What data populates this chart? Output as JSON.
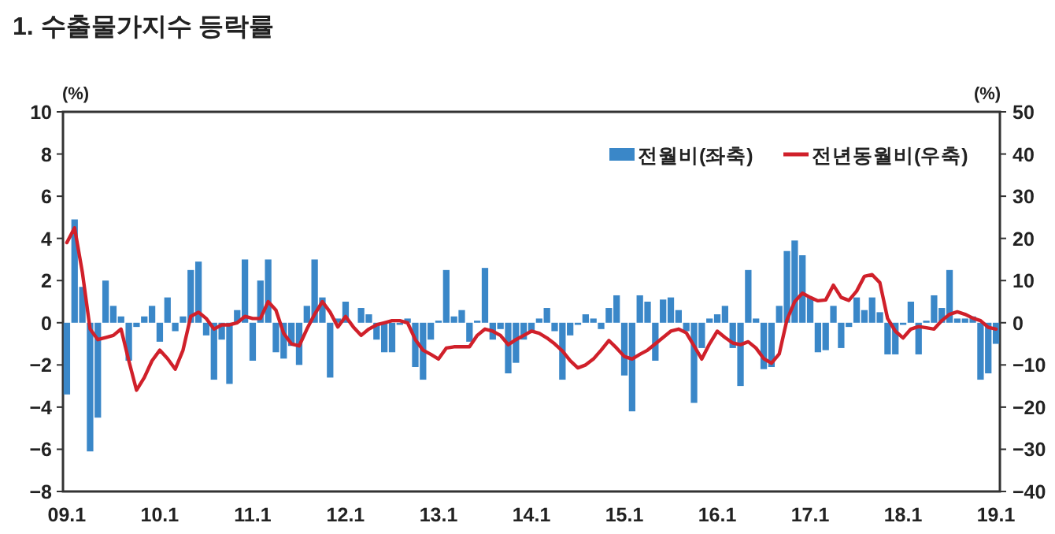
{
  "chart_data": {
    "type": "bar",
    "title": "1. 수출물가지수 등락률",
    "ylabel": "(%)",
    "y2label": "(%)",
    "categories": [
      "09.1",
      null,
      null,
      null,
      null,
      null,
      null,
      null,
      null,
      null,
      null,
      null,
      "10.1",
      null,
      null,
      null,
      null,
      null,
      null,
      null,
      null,
      null,
      null,
      null,
      "11.1",
      null,
      null,
      null,
      null,
      null,
      null,
      null,
      null,
      null,
      null,
      null,
      "12.1",
      null,
      null,
      null,
      null,
      null,
      null,
      null,
      null,
      null,
      null,
      null,
      "13.1",
      null,
      null,
      null,
      null,
      null,
      null,
      null,
      null,
      null,
      null,
      null,
      "14.1",
      null,
      null,
      null,
      null,
      null,
      null,
      null,
      null,
      null,
      null,
      null,
      "15.1",
      null,
      null,
      null,
      null,
      null,
      null,
      null,
      null,
      null,
      null,
      null,
      "16.1",
      null,
      null,
      null,
      null,
      null,
      null,
      null,
      null,
      null,
      null,
      null,
      "17.1",
      null,
      null,
      null,
      null,
      null,
      null,
      null,
      null,
      null,
      null,
      null,
      "18.1",
      null,
      null,
      null,
      null,
      null,
      null,
      null,
      null,
      null,
      null,
      null,
      "19.1"
    ],
    "series": [
      {
        "name": "전월비(좌축)",
        "color": "#3a87c8",
        "values": [
          -3.4,
          4.9,
          1.7,
          -6.1,
          -4.5,
          2.0,
          0.8,
          0.3,
          -1.8,
          -0.2,
          0.3,
          0.8,
          -0.9,
          1.2,
          -0.4,
          0.3,
          2.5,
          2.9,
          -0.6,
          -2.7,
          -0.8,
          -2.9,
          0.6,
          3.0,
          -1.8,
          2.0,
          3.0,
          -1.4,
          -1.7,
          -1.1,
          -2.0,
          0.8,
          3.0,
          1.2,
          -2.6,
          0.2,
          1.0,
          null,
          0.7,
          0.4,
          -0.8,
          -1.4,
          -1.4,
          -0.1,
          0.2,
          -2.1,
          -2.7,
          -0.8,
          0.1,
          2.5,
          0.3,
          0.6,
          -0.9,
          0.1,
          2.6,
          -0.8,
          -0.3,
          -2.4,
          -1.9,
          -0.8,
          -0.4,
          0.2,
          0.7,
          -0.4,
          -2.7,
          -0.6,
          -0.1,
          0.4,
          0.2,
          -0.3,
          0.7,
          1.3,
          -2.5,
          -4.2,
          1.3,
          1.0,
          -1.8,
          1.1,
          1.2,
          0.6,
          -0.4,
          -3.8,
          -1.2,
          0.2,
          0.4,
          0.8,
          -1.2,
          -3.0,
          2.5,
          0.2,
          -2.2,
          -2.1,
          0.8,
          3.4,
          3.9,
          3.2,
          1.2,
          -1.4,
          -1.3,
          0.8,
          -1.2,
          -0.2,
          1.2,
          0.6,
          1.2,
          0.5,
          -1.5,
          -1.5,
          -0.1,
          1.0,
          -1.5,
          0.1,
          1.3,
          0.7,
          2.5,
          0.2,
          0.2,
          0.3,
          -2.7,
          -2.4,
          -1.0
        ]
      },
      {
        "name": "전년동월비(우축)",
        "type": "line",
        "axis": "y2",
        "color": "#d0202a",
        "values": [
          19,
          22.5,
          12,
          -1.5,
          -4,
          -3.5,
          -3,
          -1.5,
          -9,
          -16,
          -13,
          -9,
          -6.5,
          -8.5,
          -11,
          -6.5,
          1.5,
          2.5,
          1,
          -1.5,
          -0.5,
          -0.5,
          0,
          1.5,
          1,
          1,
          5,
          3,
          -2.5,
          -5,
          -5.5,
          -1.5,
          2,
          5,
          2.5,
          -1,
          1.5,
          -1,
          -3,
          -1.5,
          -0.5,
          0,
          0.5,
          0.5,
          0,
          -4,
          -6.5,
          -7.5,
          -8.6,
          -6,
          -5.7,
          -5.7,
          -5.7,
          -3,
          -1.5,
          -2,
          -3,
          -5.2,
          -4,
          -3,
          -2,
          -2.5,
          -3.6,
          -5,
          -6.7,
          -9,
          -10.7,
          -10,
          -8.6,
          -6.5,
          -4.2,
          -6,
          -8,
          -8.6,
          -7.5,
          -6.5,
          -5,
          -3.5,
          -2,
          -1.5,
          -2.4,
          -5.5,
          -8.6,
          -5,
          -2,
          -3.5,
          -4.8,
          -5.2,
          -4.5,
          -6,
          -8.5,
          -9.6,
          -7.4,
          0.7,
          5,
          7,
          6,
          5.2,
          5.4,
          8.9,
          6,
          5.3,
          7.5,
          11,
          11.4,
          9.5,
          1,
          -2,
          -3.6,
          -1.5,
          -0.9,
          -1.2,
          -1.5,
          0.5,
          2,
          2.6,
          2,
          1.1,
          0.5,
          -1.1,
          -1.5
        ]
      }
    ],
    "ylim": [
      -8,
      10
    ],
    "yticks": [
      -8,
      -6,
      -4,
      -2,
      0,
      2,
      4,
      6,
      8,
      10
    ],
    "y2lim": [
      -40,
      50
    ],
    "y2ticks": [
      -40,
      -30,
      -20,
      -10,
      0,
      10,
      20,
      30,
      40,
      50
    ],
    "legend": "top right"
  }
}
